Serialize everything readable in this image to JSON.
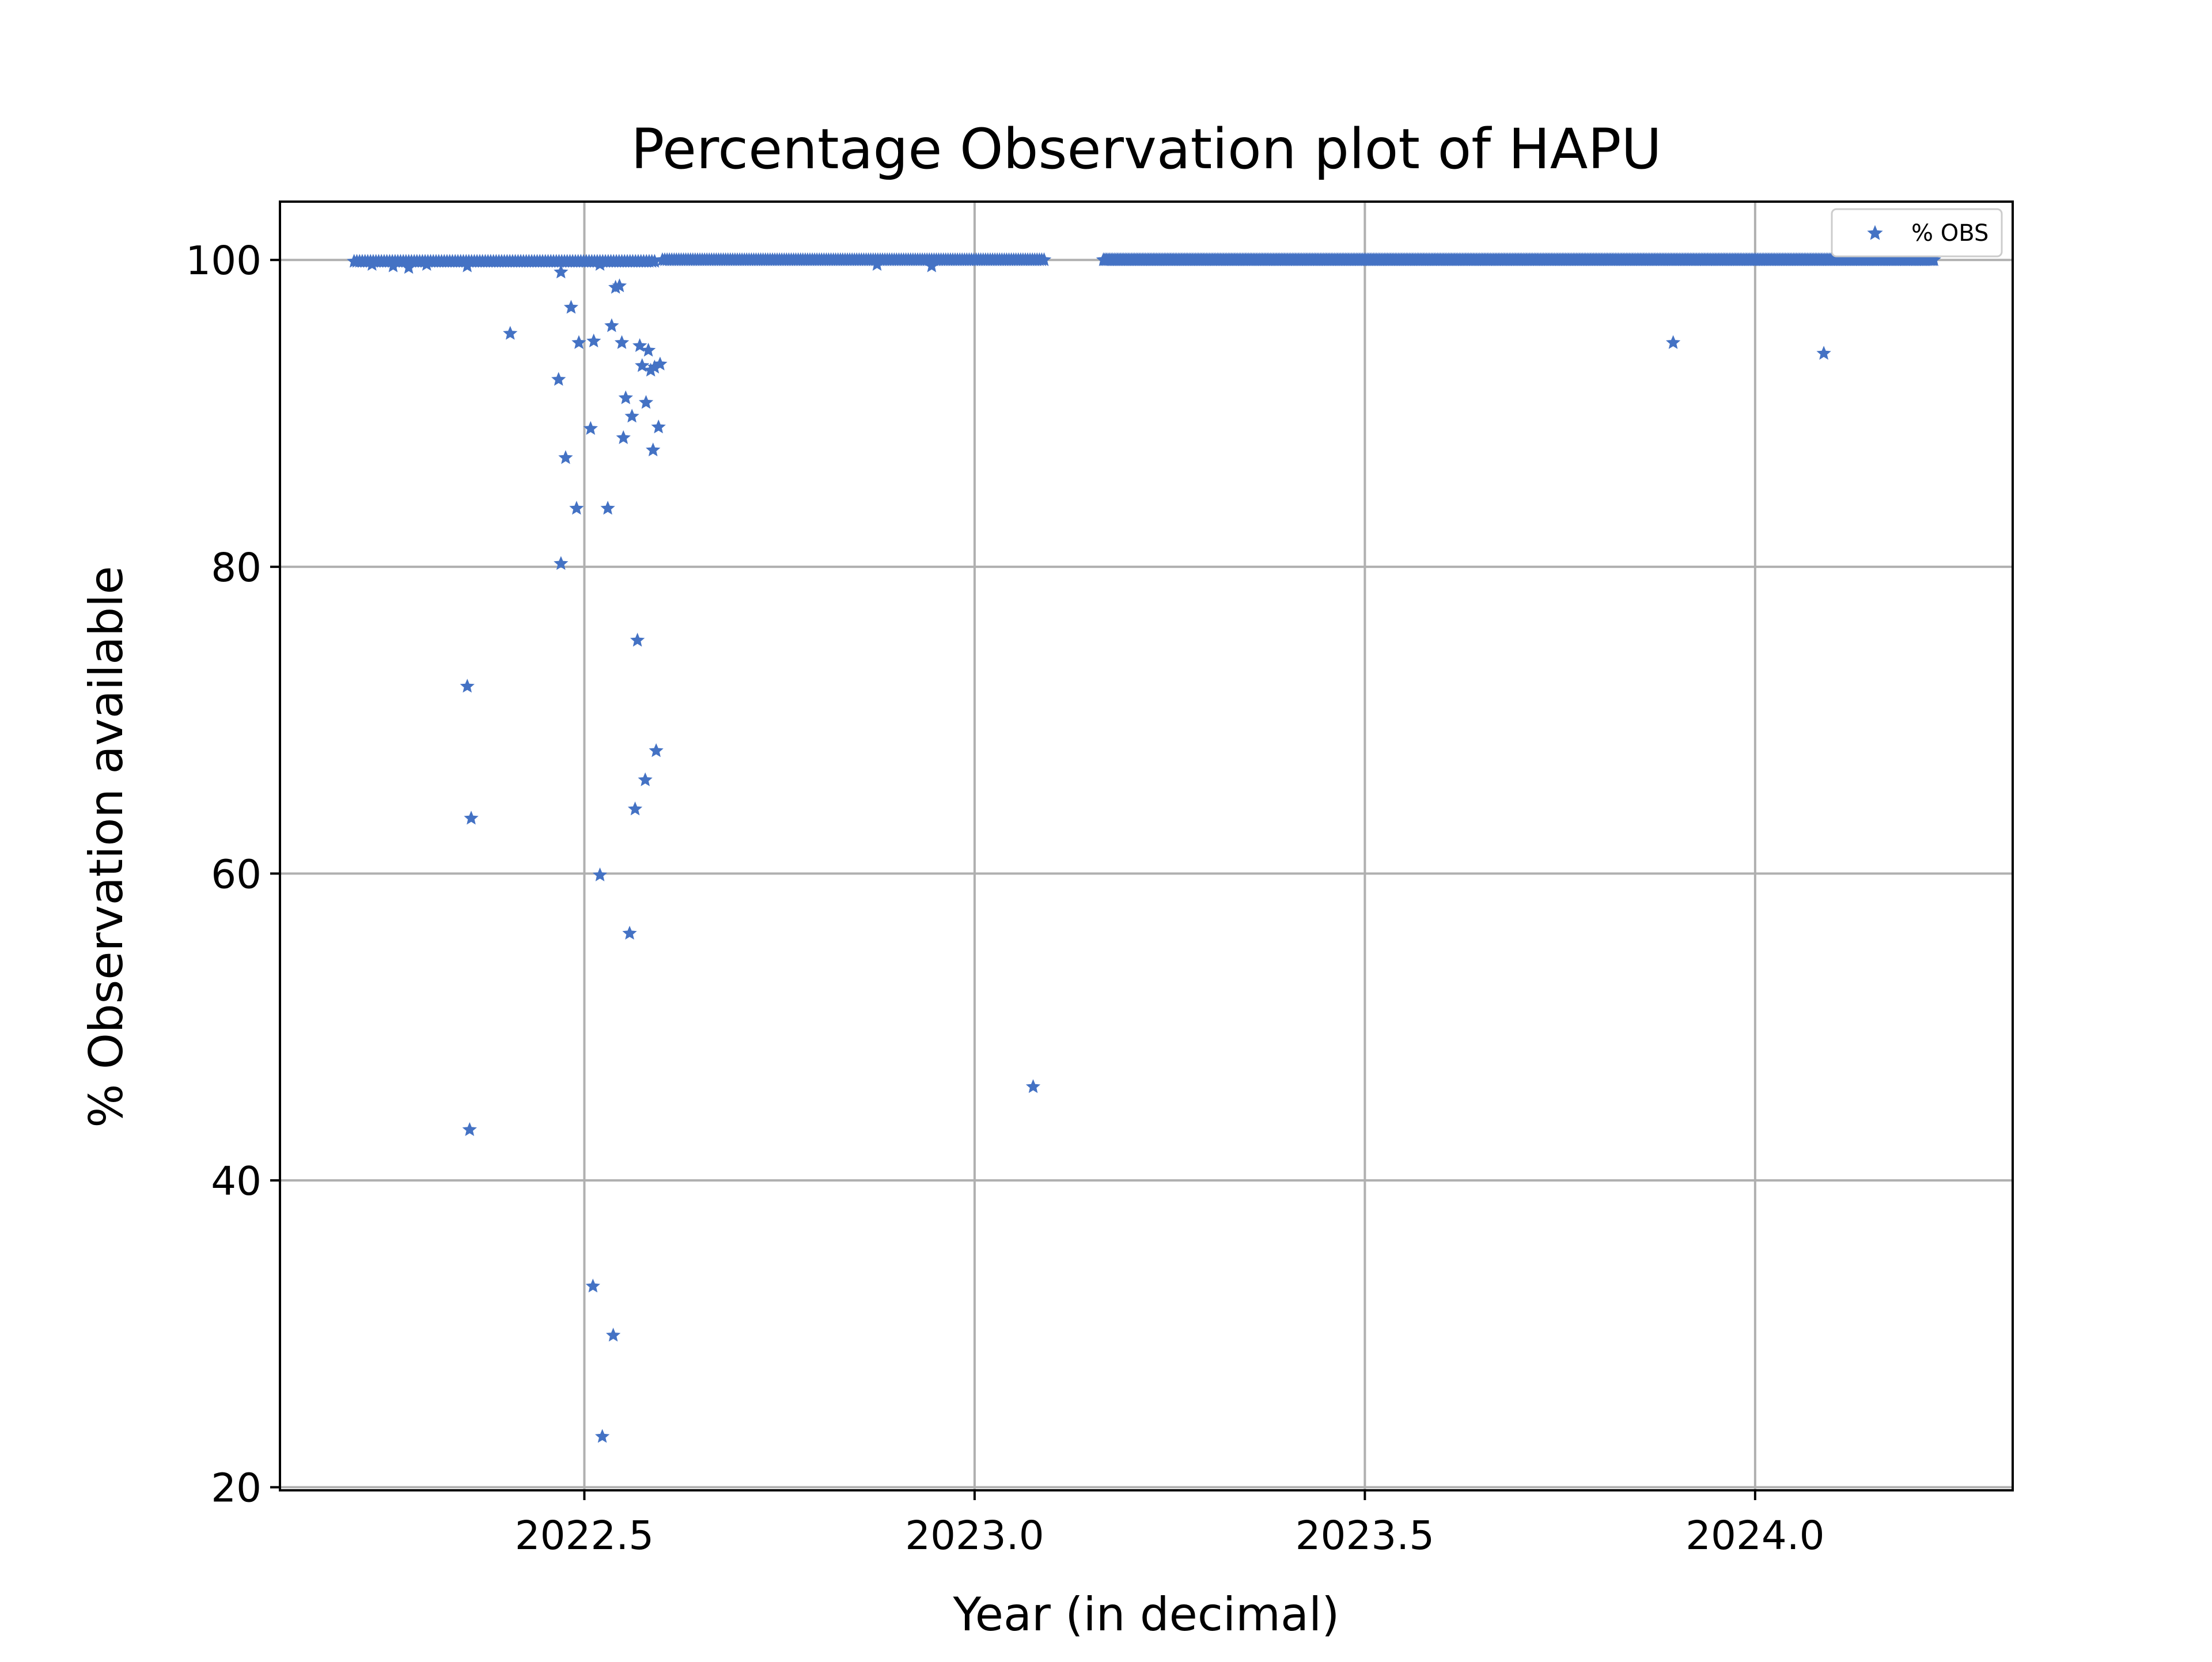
{
  "chart_data": {
    "type": "scatter",
    "title": "Percentage Observation plot of HAPU",
    "xlabel": "Year (in decimal)",
    "ylabel": "% Observation available",
    "xlim": [
      2022.11,
      2024.33
    ],
    "ylim": [
      19.8,
      103.8
    ],
    "xticks": [
      2022.5,
      2023.0,
      2023.5,
      2024.0
    ],
    "xtick_labels": [
      "2022.5",
      "2023.0",
      "2023.5",
      "2024.0"
    ],
    "yticks": [
      20,
      40,
      60,
      80,
      100
    ],
    "ytick_labels": [
      "20",
      "40",
      "60",
      "80",
      "100"
    ],
    "grid": true,
    "legend_position": "top-right",
    "marker": "star",
    "color": "#4472c4",
    "series": [
      {
        "name": "% OBS",
        "dense_segments": [
          {
            "x_start": 2022.205,
            "x_end": 2022.59,
            "y": 99.9,
            "step": 0.0035
          },
          {
            "x_start": 2022.6,
            "x_end": 2023.09,
            "y": 100.0,
            "step": 0.003
          },
          {
            "x_start": 2023.165,
            "x_end": 2024.23,
            "y": 100.0,
            "step": 0.002
          }
        ],
        "points": [
          {
            "x": 2022.228,
            "y": 99.7
          },
          {
            "x": 2022.255,
            "y": 99.6
          },
          {
            "x": 2022.275,
            "y": 99.5
          },
          {
            "x": 2022.298,
            "y": 99.7
          },
          {
            "x": 2022.35,
            "y": 99.6
          },
          {
            "x": 2022.47,
            "y": 99.2
          },
          {
            "x": 2022.52,
            "y": 99.7
          },
          {
            "x": 2022.875,
            "y": 99.7
          },
          {
            "x": 2022.945,
            "y": 99.6
          },
          {
            "x": 2022.35,
            "y": 72.2
          },
          {
            "x": 2022.355,
            "y": 63.6
          },
          {
            "x": 2022.353,
            "y": 43.3
          },
          {
            "x": 2022.405,
            "y": 95.2
          },
          {
            "x": 2022.467,
            "y": 92.2
          },
          {
            "x": 2022.476,
            "y": 87.1
          },
          {
            "x": 2022.483,
            "y": 96.9
          },
          {
            "x": 2022.49,
            "y": 83.8
          },
          {
            "x": 2022.493,
            "y": 94.6
          },
          {
            "x": 2022.47,
            "y": 80.2
          },
          {
            "x": 2022.508,
            "y": 89.0
          },
          {
            "x": 2022.512,
            "y": 94.7
          },
          {
            "x": 2022.511,
            "y": 33.1
          },
          {
            "x": 2022.52,
            "y": 59.9
          },
          {
            "x": 2022.523,
            "y": 23.3
          },
          {
            "x": 2022.53,
            "y": 83.8
          },
          {
            "x": 2022.535,
            "y": 95.7
          },
          {
            "x": 2022.537,
            "y": 29.9
          },
          {
            "x": 2022.54,
            "y": 98.2
          },
          {
            "x": 2022.545,
            "y": 98.3
          },
          {
            "x": 2022.548,
            "y": 94.6
          },
          {
            "x": 2022.55,
            "y": 88.4
          },
          {
            "x": 2022.553,
            "y": 91.0
          },
          {
            "x": 2022.558,
            "y": 56.1
          },
          {
            "x": 2022.561,
            "y": 89.8
          },
          {
            "x": 2022.565,
            "y": 64.2
          },
          {
            "x": 2022.568,
            "y": 75.2
          },
          {
            "x": 2022.571,
            "y": 94.4
          },
          {
            "x": 2022.574,
            "y": 93.1
          },
          {
            "x": 2022.578,
            "y": 66.1
          },
          {
            "x": 2022.579,
            "y": 90.7
          },
          {
            "x": 2022.582,
            "y": 94.1
          },
          {
            "x": 2022.585,
            "y": 92.8
          },
          {
            "x": 2022.588,
            "y": 87.6
          },
          {
            "x": 2022.59,
            "y": 93.0
          },
          {
            "x": 2022.592,
            "y": 68.0
          },
          {
            "x": 2022.595,
            "y": 89.1
          },
          {
            "x": 2022.597,
            "y": 93.2
          },
          {
            "x": 2023.075,
            "y": 46.1
          },
          {
            "x": 2023.895,
            "y": 94.6
          },
          {
            "x": 2024.088,
            "y": 93.9
          }
        ]
      }
    ]
  }
}
